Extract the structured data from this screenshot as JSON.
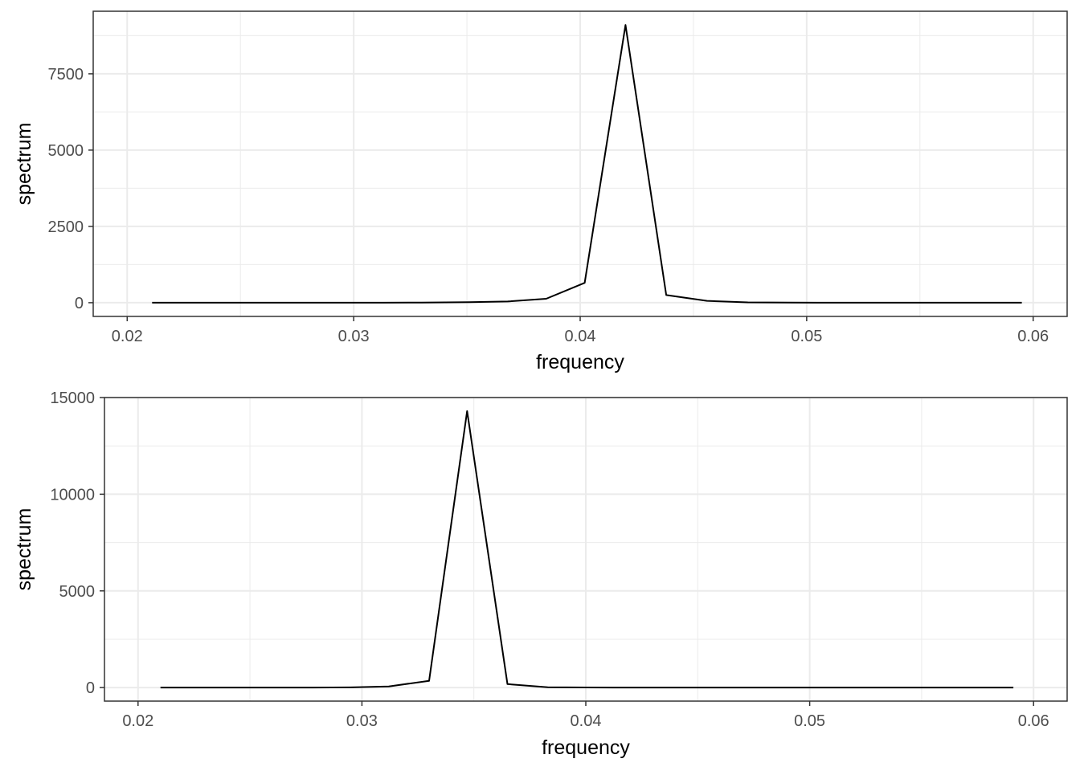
{
  "chart_data": [
    {
      "type": "line",
      "title": "",
      "xlabel": "frequency",
      "ylabel": "spectrum",
      "xlim": [
        0.0185,
        0.0615
      ],
      "ylim": [
        -450,
        9550
      ],
      "x_ticks": [
        0.02,
        0.03,
        0.04,
        0.05,
        0.06
      ],
      "x_tick_labels": [
        "0.02",
        "0.03",
        "0.04",
        "0.05",
        "0.06"
      ],
      "y_ticks": [
        0,
        2500,
        5000,
        7500
      ],
      "y_tick_labels": [
        "0",
        "2500",
        "5000",
        "7500"
      ],
      "grid": true,
      "line_color": "#000000",
      "series": [
        {
          "x": [
            0.0211,
            0.0228,
            0.0245,
            0.0262,
            0.0279,
            0.0296,
            0.0313,
            0.033,
            0.0351,
            0.0368,
            0.0385,
            0.0402,
            0.042,
            0.0438,
            0.0456,
            0.0474,
            0.0492,
            0.051,
            0.0528,
            0.0546,
            0.0564,
            0.0582,
            0.0595
          ],
          "y": [
            0,
            0,
            0,
            0,
            0,
            0,
            0,
            5,
            15,
            40,
            130,
            650,
            9100,
            250,
            60,
            10,
            2,
            0,
            0,
            0,
            0,
            0,
            0
          ]
        }
      ]
    },
    {
      "type": "line",
      "title": "",
      "xlabel": "frequency",
      "ylabel": "spectrum",
      "xlim": [
        0.0185,
        0.0615
      ],
      "ylim": [
        -700,
        15000
      ],
      "x_ticks": [
        0.02,
        0.03,
        0.04,
        0.05,
        0.06
      ],
      "x_tick_labels": [
        "0.02",
        "0.03",
        "0.04",
        "0.05",
        "0.06"
      ],
      "y_ticks": [
        0,
        5000,
        10000,
        15000
      ],
      "y_tick_labels": [
        "0",
        "5000",
        "10000",
        "15000"
      ],
      "grid": true,
      "line_color": "#000000",
      "series": [
        {
          "x": [
            0.021,
            0.0227,
            0.0244,
            0.0261,
            0.0278,
            0.0295,
            0.0312,
            0.033,
            0.0347,
            0.0365,
            0.0383,
            0.04,
            0.0418,
            0.0436,
            0.0454,
            0.0472,
            0.049,
            0.0508,
            0.0526,
            0.0544,
            0.0562,
            0.058,
            0.0591
          ],
          "y": [
            0,
            0,
            0,
            0,
            0,
            10,
            60,
            350,
            14300,
            180,
            20,
            5,
            0,
            0,
            0,
            0,
            0,
            0,
            0,
            0,
            0,
            0,
            0
          ]
        }
      ]
    }
  ]
}
